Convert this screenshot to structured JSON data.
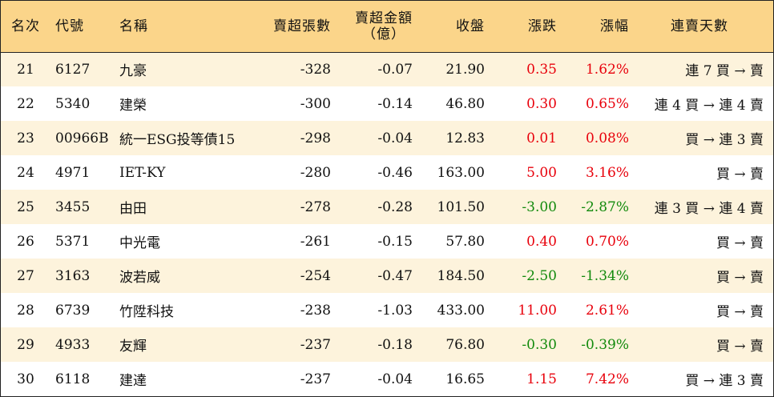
{
  "header": {
    "rank": "名次",
    "code": "代號",
    "name": "名稱",
    "short_shares": "賣超張數",
    "short_amount_line1": "賣超金額",
    "short_amount_line2": "（億）",
    "close": "收盤",
    "change": "漲跌",
    "pct": "漲幅",
    "streak": "連賣天數"
  },
  "colors": {
    "header_bg": "#fbd58a",
    "stripe_bg": "#fdf3dc",
    "up": "#e8000b",
    "down": "#128a0c"
  },
  "rows": [
    {
      "rank": "21",
      "code": "6127",
      "name": "九豪",
      "shares": "-328",
      "amount": "-0.07",
      "close": "21.90",
      "change": "0.35",
      "pct": "1.62%",
      "streak": "連 7 買 → 賣",
      "dir": "up"
    },
    {
      "rank": "22",
      "code": "5340",
      "name": "建榮",
      "shares": "-300",
      "amount": "-0.14",
      "close": "46.80",
      "change": "0.30",
      "pct": "0.65%",
      "streak": "連 4 買 → 連 4 賣",
      "dir": "up"
    },
    {
      "rank": "23",
      "code": "00966B",
      "name": "統一ESG投等債15",
      "shares": "-298",
      "amount": "-0.04",
      "close": "12.83",
      "change": "0.01",
      "pct": "0.08%",
      "streak": "買 → 連 3 賣",
      "dir": "up"
    },
    {
      "rank": "24",
      "code": "4971",
      "name": "IET-KY",
      "shares": "-280",
      "amount": "-0.46",
      "close": "163.00",
      "change": "5.00",
      "pct": "3.16%",
      "streak": "買 → 賣",
      "dir": "up"
    },
    {
      "rank": "25",
      "code": "3455",
      "name": "由田",
      "shares": "-278",
      "amount": "-0.28",
      "close": "101.50",
      "change": "-3.00",
      "pct": "-2.87%",
      "streak": "連 3 買 → 連 4 賣",
      "dir": "down"
    },
    {
      "rank": "26",
      "code": "5371",
      "name": "中光電",
      "shares": "-261",
      "amount": "-0.15",
      "close": "57.80",
      "change": "0.40",
      "pct": "0.70%",
      "streak": "買 → 賣",
      "dir": "up"
    },
    {
      "rank": "27",
      "code": "3163",
      "name": "波若威",
      "shares": "-254",
      "amount": "-0.47",
      "close": "184.50",
      "change": "-2.50",
      "pct": "-1.34%",
      "streak": "買 → 賣",
      "dir": "down"
    },
    {
      "rank": "28",
      "code": "6739",
      "name": "竹陞科技",
      "shares": "-238",
      "amount": "-1.03",
      "close": "433.00",
      "change": "11.00",
      "pct": "2.61%",
      "streak": "買 → 賣",
      "dir": "up"
    },
    {
      "rank": "29",
      "code": "4933",
      "name": "友輝",
      "shares": "-237",
      "amount": "-0.18",
      "close": "76.80",
      "change": "-0.30",
      "pct": "-0.39%",
      "streak": "買 → 賣",
      "dir": "down"
    },
    {
      "rank": "30",
      "code": "6118",
      "name": "建達",
      "shares": "-237",
      "amount": "-0.04",
      "close": "16.65",
      "change": "1.15",
      "pct": "7.42%",
      "streak": "買 → 連 3 賣",
      "dir": "up"
    }
  ]
}
